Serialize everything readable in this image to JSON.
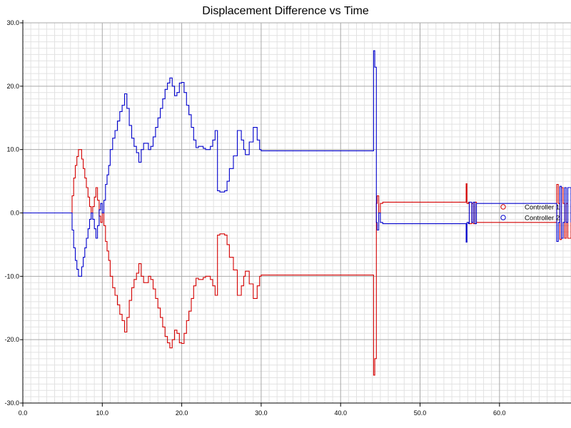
{
  "chart_data": {
    "type": "line",
    "title": "Displacement Difference vs Time",
    "xlim": [
      0,
      69
    ],
    "ylim": [
      -30,
      30
    ],
    "x_ticks": [
      0,
      10,
      20,
      30,
      40,
      50,
      60
    ],
    "x_tick_labels": [
      "0.0",
      "10.0",
      "20.0",
      "30.0",
      "40.0",
      "50.0",
      "60.0"
    ],
    "y_ticks": [
      30,
      20,
      10,
      0,
      -10,
      -20,
      -30
    ],
    "y_tick_labels": [
      "30.0",
      "20.0",
      "10.0",
      "0.0",
      "-10.0",
      "-20.0",
      "-30.0"
    ],
    "grid": true,
    "minor_grid": true,
    "legend_position": "right",
    "series": [
      {
        "name": "Controller 1",
        "color": "#d40000",
        "x": [
          0,
          6.1,
          6.2,
          6.4,
          6.6,
          6.8,
          7.0,
          7.2,
          7.4,
          7.6,
          7.8,
          8.0,
          8.2,
          8.4,
          8.6,
          8.8,
          9.0,
          9.2,
          9.4,
          9.6,
          9.8,
          10.0,
          10.2,
          10.4,
          10.6,
          10.8,
          11.0,
          11.3,
          11.6,
          11.9,
          12.2,
          12.5,
          12.8,
          13.1,
          13.4,
          13.7,
          14.0,
          14.3,
          14.6,
          14.9,
          15.2,
          15.5,
          15.8,
          16.1,
          16.4,
          16.7,
          17.0,
          17.3,
          17.6,
          17.9,
          18.2,
          18.5,
          18.8,
          19.1,
          19.4,
          19.7,
          20.0,
          20.3,
          20.6,
          20.9,
          21.2,
          21.5,
          21.8,
          22.1,
          22.4,
          22.7,
          23.0,
          23.3,
          23.6,
          23.9,
          24.2,
          24.5,
          24.8,
          25.1,
          25.4,
          25.7,
          26.0,
          26.5,
          27.0,
          27.5,
          27.8,
          28.0,
          28.5,
          29.0,
          29.5,
          29.8,
          30.0,
          30.3,
          30.6,
          30.8,
          31.0,
          31.2,
          31.5,
          31.8,
          32.0,
          32.3,
          32.6,
          32.9,
          33.2,
          33.5,
          33.7,
          34.0,
          44.1,
          44.15,
          44.3,
          44.5,
          44.6,
          44.8,
          45.0,
          45.3,
          45.5,
          55.8,
          55.9,
          56.1,
          56.2,
          56.5,
          56.7,
          56.9,
          57.1,
          67.0,
          67.2,
          67.4,
          67.6,
          67.8,
          68.0,
          68.2,
          68.4,
          68.6,
          69
        ],
        "y": [
          0,
          0,
          2.7,
          5.5,
          7.5,
          8.9,
          10.0,
          10.0,
          8.5,
          7.0,
          5.5,
          4.0,
          2.5,
          1.0,
          0,
          1.0,
          2.5,
          4.0,
          2.0,
          -0.5,
          -1.5,
          0,
          -2.0,
          -4.5,
          -6.0,
          -7.5,
          -10.0,
          -11.8,
          -13.0,
          -14.5,
          -16.0,
          -17.0,
          -18.8,
          -16.5,
          -13.8,
          -11.8,
          -10.5,
          -9.5,
          -8.0,
          -10.0,
          -11.0,
          -11.0,
          -10.0,
          -10.5,
          -12.0,
          -13.5,
          -15.0,
          -16.5,
          -18.0,
          -19.5,
          -20.5,
          -21.3,
          -20.0,
          -18.5,
          -19.0,
          -20.5,
          -20.6,
          -19.0,
          -17.0,
          -15.5,
          -13.5,
          -11.5,
          -10.3,
          -10.5,
          -10.5,
          -10.2,
          -10.0,
          -10.0,
          -10.5,
          -11.5,
          -13.0,
          -3.5,
          -3.3,
          -3.3,
          -3.5,
          -5.0,
          -7.0,
          -9.0,
          -13.0,
          -11.5,
          -10.0,
          -9.2,
          -11.2,
          -13.5,
          -11.5,
          -10.0,
          -9.8,
          -9.8,
          -9.8,
          -9.8,
          -9.8,
          -9.8,
          -9.8,
          -9.8,
          -9.8,
          -9.8,
          -9.8,
          -9.8,
          -9.8,
          -9.8,
          -9.8,
          -9.8,
          -9.8,
          -25.6,
          -23.0,
          1.5,
          2.7,
          0,
          1.5,
          1.7,
          1.7,
          4.6,
          1.5,
          1.7,
          -1.7,
          1.5,
          -1.7,
          1.7,
          -1.5,
          -1.5,
          4.5,
          1.5,
          -4.2,
          4.0,
          1.5,
          -4.0,
          1.5,
          -4.0,
          1.5
        ]
      },
      {
        "name": "Controller 2",
        "color": "#0000cc",
        "x": [
          0,
          6.1,
          6.2,
          6.4,
          6.6,
          6.8,
          7.0,
          7.2,
          7.4,
          7.6,
          7.8,
          8.0,
          8.2,
          8.4,
          8.6,
          8.8,
          9.0,
          9.2,
          9.4,
          9.6,
          9.8,
          10.0,
          10.2,
          10.4,
          10.6,
          10.8,
          11.0,
          11.3,
          11.6,
          11.9,
          12.2,
          12.5,
          12.8,
          13.1,
          13.4,
          13.7,
          14.0,
          14.3,
          14.6,
          14.9,
          15.2,
          15.5,
          15.8,
          16.1,
          16.4,
          16.7,
          17.0,
          17.3,
          17.6,
          17.9,
          18.2,
          18.5,
          18.8,
          19.1,
          19.4,
          19.7,
          20.0,
          20.3,
          20.6,
          20.9,
          21.2,
          21.5,
          21.8,
          22.1,
          22.4,
          22.7,
          23.0,
          23.3,
          23.6,
          23.9,
          24.2,
          24.5,
          24.8,
          25.1,
          25.4,
          25.7,
          26.0,
          26.5,
          27.0,
          27.5,
          27.8,
          28.0,
          28.5,
          29.0,
          29.5,
          29.8,
          30.0,
          30.3,
          30.6,
          30.8,
          31.0,
          31.2,
          31.5,
          31.8,
          32.0,
          32.3,
          32.6,
          32.9,
          33.2,
          33.5,
          33.7,
          34.0,
          44.1,
          44.15,
          44.3,
          44.5,
          44.6,
          44.8,
          45.0,
          45.3,
          45.5,
          55.8,
          55.9,
          56.1,
          56.2,
          56.5,
          56.7,
          56.9,
          57.1,
          67.0,
          67.2,
          67.4,
          67.6,
          67.8,
          68.0,
          68.2,
          68.4,
          68.6,
          69
        ],
        "y": [
          0,
          0,
          -2.7,
          -5.5,
          -7.5,
          -8.9,
          -10.0,
          -10.0,
          -8.5,
          -7.0,
          -5.5,
          -4.0,
          -2.5,
          -1.0,
          0,
          -1.0,
          -2.5,
          -4.0,
          -2.0,
          0.5,
          1.5,
          0,
          2.0,
          4.5,
          6.0,
          7.5,
          10.0,
          11.8,
          13.0,
          14.5,
          16.0,
          17.0,
          18.8,
          16.5,
          13.8,
          11.8,
          10.5,
          9.5,
          8.0,
          10.0,
          11.0,
          11.0,
          10.0,
          10.5,
          12.0,
          13.5,
          15.0,
          16.5,
          18.0,
          19.5,
          20.5,
          21.3,
          20.0,
          18.5,
          19.0,
          20.5,
          20.6,
          19.0,
          17.0,
          15.5,
          13.5,
          11.5,
          10.3,
          10.5,
          10.5,
          10.2,
          10.0,
          10.0,
          10.5,
          11.5,
          13.0,
          3.5,
          3.3,
          3.3,
          3.5,
          5.0,
          7.0,
          9.0,
          13.0,
          11.5,
          10.0,
          9.2,
          11.2,
          13.5,
          11.5,
          10.0,
          9.8,
          9.8,
          9.8,
          9.8,
          9.8,
          9.8,
          9.8,
          9.8,
          9.8,
          9.8,
          9.8,
          9.8,
          9.8,
          9.8,
          9.8,
          9.8,
          9.8,
          25.6,
          23.0,
          -1.5,
          -2.7,
          0,
          -1.5,
          -1.7,
          -1.7,
          -4.6,
          -1.5,
          -1.7,
          1.7,
          -1.5,
          1.7,
          -1.7,
          1.5,
          1.5,
          -4.5,
          -1.5,
          4.2,
          -4.0,
          -1.5,
          4.0,
          -1.5,
          4.0,
          -1.5
        ]
      }
    ]
  }
}
